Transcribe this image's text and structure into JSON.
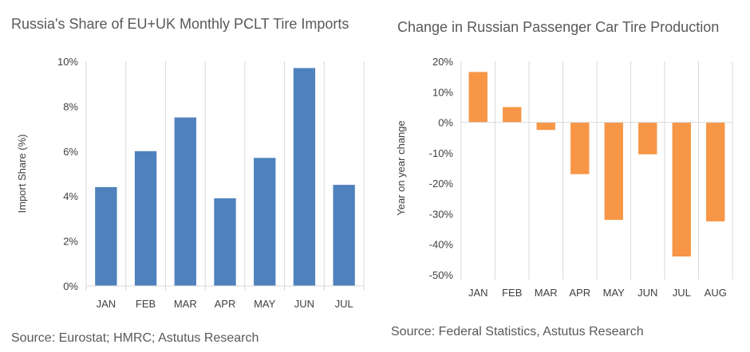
{
  "chart_data": [
    {
      "type": "bar",
      "title": "Russia's Share of EU+UK Monthly PCLT Tire Imports",
      "ylabel": "Import Share (%)",
      "xlabel": "",
      "categories": [
        "JAN",
        "FEB",
        "MAR",
        "APR",
        "MAY",
        "JUN",
        "JUL"
      ],
      "values": [
        4.4,
        6.0,
        7.5,
        3.9,
        5.7,
        9.7,
        4.5
      ],
      "ylim": [
        0,
        10
      ],
      "yticks": [
        0,
        2,
        4,
        6,
        8,
        10
      ],
      "ytick_labels": [
        "0%",
        "2%",
        "4%",
        "6%",
        "8%",
        "10%"
      ],
      "grid": "vertical category separators",
      "color": "#4F81BD",
      "source": "Source: Eurostat; HMRC; Astutus Research"
    },
    {
      "type": "bar",
      "title": "Change in Russian Passenger Car Tire Production",
      "ylabel": "Year on year change",
      "xlabel": "",
      "categories": [
        "JAN",
        "FEB",
        "MAR",
        "APR",
        "MAY",
        "JUN",
        "JUL",
        "AUG"
      ],
      "values": [
        16.5,
        5,
        -2.5,
        -17,
        -32,
        -10.5,
        -44,
        -32.5
      ],
      "ylim": [
        -50,
        20
      ],
      "yticks": [
        -50,
        -40,
        -30,
        -20,
        -10,
        0,
        10,
        20
      ],
      "ytick_labels": [
        "-50%",
        "-40%",
        "-30%",
        "-20%",
        "-10%",
        "0%",
        "10%",
        "20%"
      ],
      "grid": "vertical category separators",
      "color": "#F79646",
      "source": "Source: Federal Statistics, Astutus Research"
    }
  ]
}
